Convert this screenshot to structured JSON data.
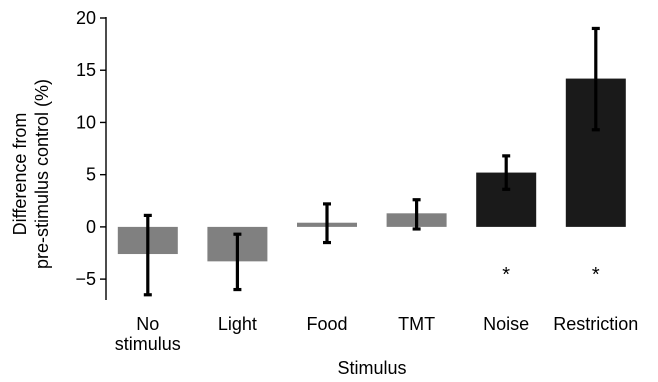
{
  "chart_data": {
    "type": "bar",
    "categories": [
      [
        "No",
        "stimulus"
      ],
      [
        "Light"
      ],
      [
        "Food"
      ],
      [
        "TMT"
      ],
      [
        "Noise"
      ],
      [
        "Restriction"
      ]
    ],
    "values": [
      -2.6,
      -3.3,
      0.4,
      1.3,
      5.2,
      14.2
    ],
    "error_low": [
      -6.5,
      -6.0,
      -1.5,
      -0.2,
      3.6,
      9.3
    ],
    "error_high": [
      1.1,
      -0.7,
      2.2,
      2.6,
      6.8,
      19.0
    ],
    "bar_colors": [
      "#808080",
      "#808080",
      "#808080",
      "#808080",
      "#1a1a1a",
      "#1a1a1a"
    ],
    "significance": [
      "",
      "",
      "",
      "",
      "*",
      "*"
    ],
    "xlabel": "Stimulus",
    "ylabel_lines": [
      "Difference from",
      "pre-stimulus control (%)"
    ],
    "ylim": [
      -7,
      20
    ],
    "yticks": [
      -5,
      0,
      5,
      10,
      15,
      20
    ],
    "ytick_labels": [
      "−5",
      "0",
      "5",
      "10",
      "15",
      "20"
    ],
    "grid": false
  }
}
